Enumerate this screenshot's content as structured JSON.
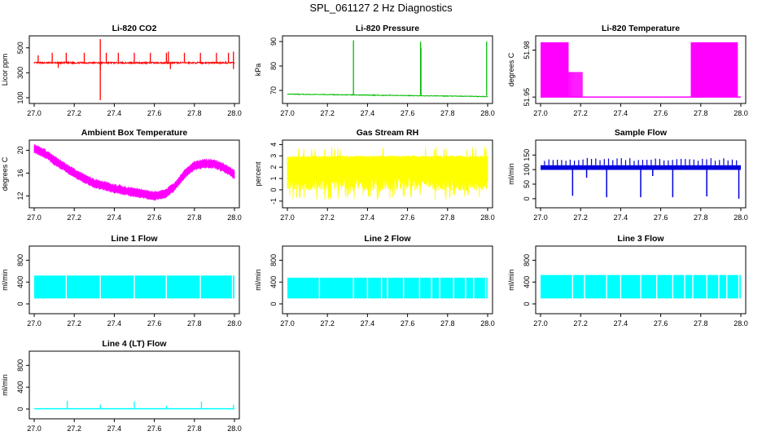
{
  "page_title": "SPL_061127  2 Hz Diagnostics",
  "x_ticks": [
    "27.0",
    "27.2",
    "27.4",
    "27.6",
    "27.8",
    "28.0"
  ],
  "chart_data": [
    {
      "id": "co2",
      "type": "line",
      "title": "Li-820 CO2",
      "ylabel": "Licor ppm",
      "xlim": [
        27.0,
        28.0
      ],
      "ylim": [
        80,
        570
      ],
      "yticks": [
        "100",
        "300",
        "500"
      ],
      "yticks_val": [
        100,
        300,
        500
      ],
      "color": "#ff0000",
      "baseline": 380,
      "noise": 12,
      "spikes": [
        {
          "x": 27.33,
          "y": 570,
          "lo": 80
        },
        {
          "x": 27.02,
          "y": 440
        },
        {
          "x": 27.09,
          "y": 460
        },
        {
          "x": 27.16,
          "y": 460
        },
        {
          "x": 27.25,
          "y": 460
        },
        {
          "x": 27.36,
          "y": 460
        },
        {
          "x": 27.42,
          "y": 460
        },
        {
          "x": 27.5,
          "y": 460
        },
        {
          "x": 27.58,
          "y": 460
        },
        {
          "x": 27.66,
          "y": 460
        },
        {
          "x": 27.67,
          "y": 470
        },
        {
          "x": 27.75,
          "y": 460
        },
        {
          "x": 27.83,
          "y": 460
        },
        {
          "x": 27.91,
          "y": 460
        },
        {
          "x": 27.97,
          "y": 460
        },
        {
          "x": 27.995,
          "y": 470
        }
      ],
      "dips": [
        {
          "x": 27.12,
          "y": 340
        },
        {
          "x": 27.33,
          "y": 320
        },
        {
          "x": 27.68,
          "y": 330
        },
        {
          "x": 27.995,
          "y": 330
        }
      ]
    },
    {
      "id": "pressure",
      "type": "line",
      "title": "Li-820 Pressure",
      "ylabel": "kPa",
      "xlim": [
        27.0,
        28.0
      ],
      "ylim": [
        66,
        91
      ],
      "yticks": [
        "70",
        "80",
        "90"
      ],
      "yticks_val": [
        70,
        80,
        90
      ],
      "color": "#00bb00",
      "start": 68.5,
      "end": 67.5,
      "noise": 0.25,
      "spikes": [
        {
          "x": 27.33,
          "y": 90.5
        },
        {
          "x": 27.665,
          "y": 90.0
        },
        {
          "x": 27.667,
          "y": 87.5
        },
        {
          "x": 27.995,
          "y": 90.0
        }
      ]
    },
    {
      "id": "li_temp",
      "type": "line",
      "title": "Li-820 Temperature",
      "ylabel": "degrees C",
      "xlim": [
        27.0,
        28.0
      ],
      "ylim": [
        51.948,
        51.987
      ],
      "yticks": [
        "51.95",
        "51.98"
      ],
      "yticks_val": [
        51.95,
        51.98
      ],
      "color": "#ff00ff",
      "low": 51.95,
      "high": 51.985,
      "mid": 51.966,
      "osc_ranges": [
        [
          27.0,
          27.14
        ],
        [
          27.75,
          27.985
        ]
      ],
      "low_ranges": [
        [
          27.0,
          27.03
        ],
        [
          27.75,
          27.8
        ]
      ]
    },
    {
      "id": "box_temp",
      "type": "line",
      "title": "Ambient Box Temperature",
      "ylabel": "degrees C",
      "xlim": [
        27.0,
        28.0
      ],
      "ylim": [
        10.5,
        21.2
      ],
      "yticks": [
        "12",
        "16",
        "20"
      ],
      "yticks_val": [
        12,
        16,
        20
      ],
      "color": "#ff00ff",
      "noise": 0.8,
      "x": [
        27.0,
        27.05,
        27.1,
        27.2,
        27.3,
        27.4,
        27.5,
        27.6,
        27.65,
        27.7,
        27.75,
        27.8,
        27.85,
        27.9,
        27.95,
        28.0
      ],
      "y": [
        20.3,
        19.5,
        18.2,
        16.0,
        14.2,
        13.3,
        12.6,
        12.0,
        12.3,
        13.6,
        15.8,
        17.3,
        17.7,
        17.6,
        16.9,
        15.7
      ]
    },
    {
      "id": "rh",
      "type": "line",
      "title": "Gas Stream RH",
      "ylabel": "percent",
      "xlim": [
        27.0,
        28.0
      ],
      "ylim": [
        -1.3,
        4.1
      ],
      "yticks": [
        "-1",
        "0",
        "1",
        "2",
        "3",
        "4"
      ],
      "yticks_val": [
        -1,
        0,
        1,
        2,
        3,
        4
      ],
      "color": "#ffff00",
      "upper": [
        2.8,
        3.0
      ],
      "lower": [
        1.2,
        1.6
      ],
      "min": -0.9,
      "max": 3.8
    },
    {
      "id": "sample_flow",
      "type": "line",
      "title": "Sample Flow",
      "ylabel": "ml/min",
      "xlim": [
        27.0,
        28.0
      ],
      "ylim": [
        -20,
        190
      ],
      "yticks": [
        "0",
        "50",
        "100",
        "150"
      ],
      "yticks_val": [
        0,
        50,
        100,
        150
      ],
      "color": "#0000dd",
      "low": 99,
      "high": 115,
      "noise_up": 25,
      "dips": [
        {
          "x": 27.16,
          "y": 10
        },
        {
          "x": 27.23,
          "y": 72
        },
        {
          "x": 27.33,
          "y": 5
        },
        {
          "x": 27.5,
          "y": 5
        },
        {
          "x": 27.56,
          "y": 78
        },
        {
          "x": 27.66,
          "y": 5
        },
        {
          "x": 27.83,
          "y": 8
        },
        {
          "x": 27.99,
          "y": 0
        }
      ]
    },
    {
      "id": "line1",
      "type": "line",
      "title": "Line 1 Flow",
      "ylabel": "ml/min",
      "xlim": [
        27.0,
        28.0
      ],
      "ylim": [
        -120,
        1000
      ],
      "yticks": [
        "0",
        "400",
        "800"
      ],
      "yticks_val": [
        0,
        400,
        800
      ],
      "color": "#00ffff",
      "top": 520,
      "bottom": 100,
      "gaps": [
        27.16,
        27.33,
        27.5,
        27.66,
        27.83,
        27.99
      ]
    },
    {
      "id": "line2",
      "type": "line",
      "title": "Line 2 Flow",
      "ylabel": "ml/min",
      "xlim": [
        27.0,
        28.0
      ],
      "ylim": [
        -120,
        1000
      ],
      "yticks": [
        "0",
        "400",
        "800"
      ],
      "yticks_val": [
        0,
        400,
        800
      ],
      "color": "#00ffff",
      "top": 480,
      "bottom": 100,
      "gaps": [
        27.16,
        27.33,
        27.4,
        27.47,
        27.5,
        27.58,
        27.66,
        27.72,
        27.76,
        27.83,
        27.89,
        27.93,
        27.99
      ]
    },
    {
      "id": "line3",
      "type": "line",
      "title": "Line 3 Flow",
      "ylabel": "ml/min",
      "xlim": [
        27.0,
        28.0
      ],
      "ylim": [
        -120,
        1000
      ],
      "yticks": [
        "0",
        "400",
        "800"
      ],
      "yticks_val": [
        0,
        400,
        800
      ],
      "color": "#00ffff",
      "top": 530,
      "bottom": 100,
      "gaps": [
        27.16,
        27.22,
        27.33,
        27.4,
        27.5,
        27.58,
        27.66,
        27.72,
        27.76,
        27.83,
        27.89,
        27.93,
        27.99
      ]
    },
    {
      "id": "line4",
      "type": "line",
      "title": "Line 4 (LT) Flow",
      "ylabel": "ml/min",
      "xlim": [
        27.0,
        28.0
      ],
      "ylim": [
        -120,
        1000
      ],
      "yticks": [
        "0",
        "400",
        "800"
      ],
      "yticks_val": [
        0,
        400,
        800
      ],
      "color": "#00ffff",
      "baseline": 5,
      "spikes": [
        {
          "x": 27.165,
          "y": 150
        },
        {
          "x": 27.33,
          "y": 80
        },
        {
          "x": 27.5,
          "y": 140
        },
        {
          "x": 27.66,
          "y": 60
        },
        {
          "x": 27.835,
          "y": 140
        },
        {
          "x": 27.995,
          "y": 80
        }
      ]
    }
  ]
}
